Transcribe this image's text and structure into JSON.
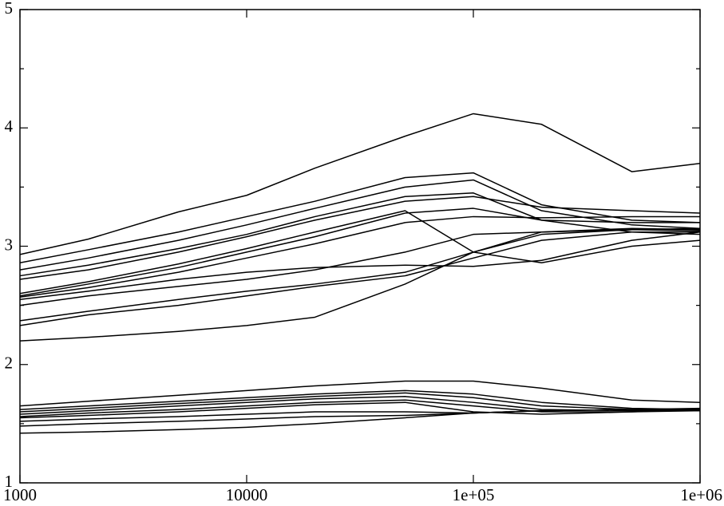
{
  "chart_data": {
    "type": "line",
    "xscale": "log",
    "color": "#000000",
    "x": [
      1000,
      2000,
      5000,
      10000,
      20000,
      50000,
      100000,
      200000,
      500000,
      1000000
    ],
    "xlim": [
      1000,
      1000000
    ],
    "xticks": [
      1000,
      10000,
      {
        "value": 100000,
        "label": "1e+05"
      },
      {
        "value": 1000000,
        "label": "1e+06"
      }
    ],
    "ylim": [
      1,
      5
    ],
    "yticks": [
      1,
      2,
      3,
      4,
      5
    ],
    "yminor": [
      1.5,
      2.5,
      3.5,
      4.5
    ],
    "series": [
      {
        "values": [
          2.93,
          3.06,
          3.29,
          3.43,
          3.66,
          3.93,
          4.12,
          4.03,
          3.63,
          3.7
        ]
      },
      {
        "values": [
          2.86,
          2.97,
          3.12,
          3.25,
          3.38,
          3.58,
          3.62,
          3.35,
          3.22,
          3.2
        ]
      },
      {
        "values": [
          2.8,
          2.9,
          3.05,
          3.18,
          3.32,
          3.5,
          3.56,
          3.3,
          3.18,
          3.15
        ]
      },
      {
        "values": [
          2.75,
          2.84,
          2.98,
          3.1,
          3.25,
          3.42,
          3.45,
          3.22,
          3.12,
          3.1
        ]
      },
      {
        "values": [
          2.72,
          2.8,
          2.95,
          3.08,
          3.22,
          3.38,
          3.42,
          3.33,
          3.3,
          3.28
        ]
      },
      {
        "values": [
          2.6,
          2.7,
          2.85,
          2.98,
          3.12,
          3.3,
          2.95,
          2.86,
          3.0,
          3.05
        ]
      },
      {
        "values": [
          2.58,
          2.68,
          2.82,
          2.95,
          3.08,
          3.28,
          3.32,
          3.22,
          3.2,
          3.2
        ]
      },
      {
        "values": [
          2.57,
          2.65,
          2.78,
          2.9,
          3.02,
          3.2,
          3.25,
          3.24,
          3.25,
          3.25
        ]
      },
      {
        "values": [
          2.55,
          2.62,
          2.72,
          2.78,
          2.82,
          2.84,
          2.83,
          2.88,
          3.05,
          3.12
        ]
      },
      {
        "values": [
          2.5,
          2.58,
          2.66,
          2.72,
          2.8,
          2.95,
          3.1,
          3.12,
          3.14,
          3.13
        ]
      },
      {
        "values": [
          2.37,
          2.45,
          2.55,
          2.62,
          2.68,
          2.78,
          2.95,
          3.12,
          3.15,
          3.14
        ]
      },
      {
        "values": [
          2.33,
          2.42,
          2.5,
          2.58,
          2.66,
          2.75,
          2.9,
          3.05,
          3.12,
          3.12
        ]
      },
      {
        "values": [
          2.2,
          2.23,
          2.28,
          2.33,
          2.4,
          2.68,
          2.95,
          3.1,
          3.14,
          3.15
        ]
      },
      {
        "values": [
          1.65,
          1.69,
          1.74,
          1.78,
          1.82,
          1.86,
          1.86,
          1.8,
          1.7,
          1.68
        ]
      },
      {
        "values": [
          1.62,
          1.65,
          1.69,
          1.72,
          1.75,
          1.78,
          1.75,
          1.68,
          1.63,
          1.62
        ]
      },
      {
        "values": [
          1.6,
          1.63,
          1.67,
          1.7,
          1.73,
          1.76,
          1.72,
          1.65,
          1.62,
          1.62
        ]
      },
      {
        "values": [
          1.58,
          1.61,
          1.65,
          1.68,
          1.71,
          1.73,
          1.68,
          1.62,
          1.61,
          1.61
        ]
      },
      {
        "values": [
          1.56,
          1.59,
          1.62,
          1.65,
          1.68,
          1.7,
          1.65,
          1.6,
          1.6,
          1.61
        ]
      },
      {
        "values": [
          1.55,
          1.57,
          1.6,
          1.63,
          1.66,
          1.68,
          1.6,
          1.58,
          1.6,
          1.62
        ]
      },
      {
        "values": [
          1.52,
          1.54,
          1.56,
          1.58,
          1.6,
          1.6,
          1.59,
          1.61,
          1.62,
          1.63
        ]
      },
      {
        "values": [
          1.48,
          1.5,
          1.52,
          1.54,
          1.56,
          1.57,
          1.59,
          1.61,
          1.62,
          1.62
        ]
      },
      {
        "values": [
          1.42,
          1.43,
          1.45,
          1.47,
          1.5,
          1.55,
          1.59,
          1.61,
          1.62,
          1.62
        ]
      }
    ]
  }
}
